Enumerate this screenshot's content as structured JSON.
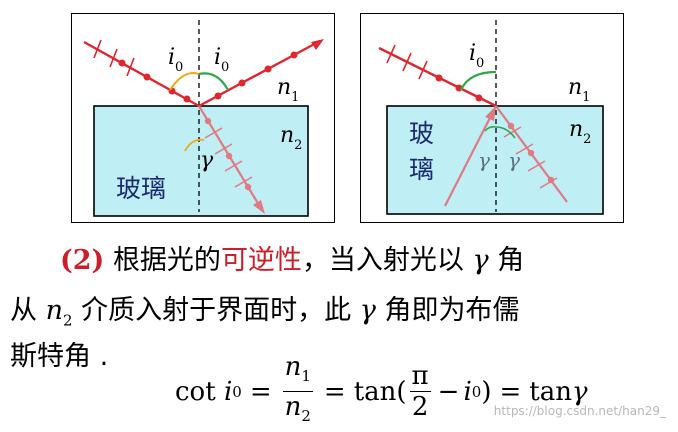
{
  "left_panel": {
    "labels": {
      "i0_left": "i",
      "i0_left_sub": "0",
      "i0_right": "i",
      "i0_right_sub": "0",
      "n1": "n",
      "n1_sub": "1",
      "n2": "n",
      "n2_sub": "2",
      "gamma": "γ",
      "glass": "玻璃"
    }
  },
  "right_panel": {
    "labels": {
      "i0": "i",
      "i0_sub": "0",
      "n1": "n",
      "n1_sub": "1",
      "n2": "n",
      "n2_sub": "2",
      "gamma1": "γ",
      "gamma2": "γ",
      "glass_top": "玻",
      "glass_bottom": "璃"
    }
  },
  "paragraph": {
    "marker": "(2)",
    "line1_a": "根据光的",
    "line1_red": "可逆性",
    "line1_b": "，当入射光以",
    "gamma": "γ",
    "line1_c": "角",
    "line2_a": "从",
    "n2": "n",
    "n2_sub": "2",
    "line2_b": "介质入射于界面时，此",
    "line2_c": "角即为布儒",
    "line3": "斯特角 ."
  },
  "formula": {
    "cot": "cot",
    "i": "i",
    "sub0": "0",
    "eq": "=",
    "num_n": "n",
    "num_sub": "1",
    "den_n": "n",
    "den_sub": "2",
    "tan": "tan(",
    "pi": "π",
    "two": "2",
    "minus": "−",
    "close": ")",
    "tan2": "tan",
    "gamma": "γ"
  },
  "watermark": "https://blog.csdn.net/han29_",
  "colors": {
    "ray": "#e0262e",
    "refracted": "#e07a80",
    "glass_fill": "#bfeef5",
    "angle_orange": "#f0a81c",
    "angle_green": "#2ea84a",
    "emphasis": "#cc1f2a"
  }
}
